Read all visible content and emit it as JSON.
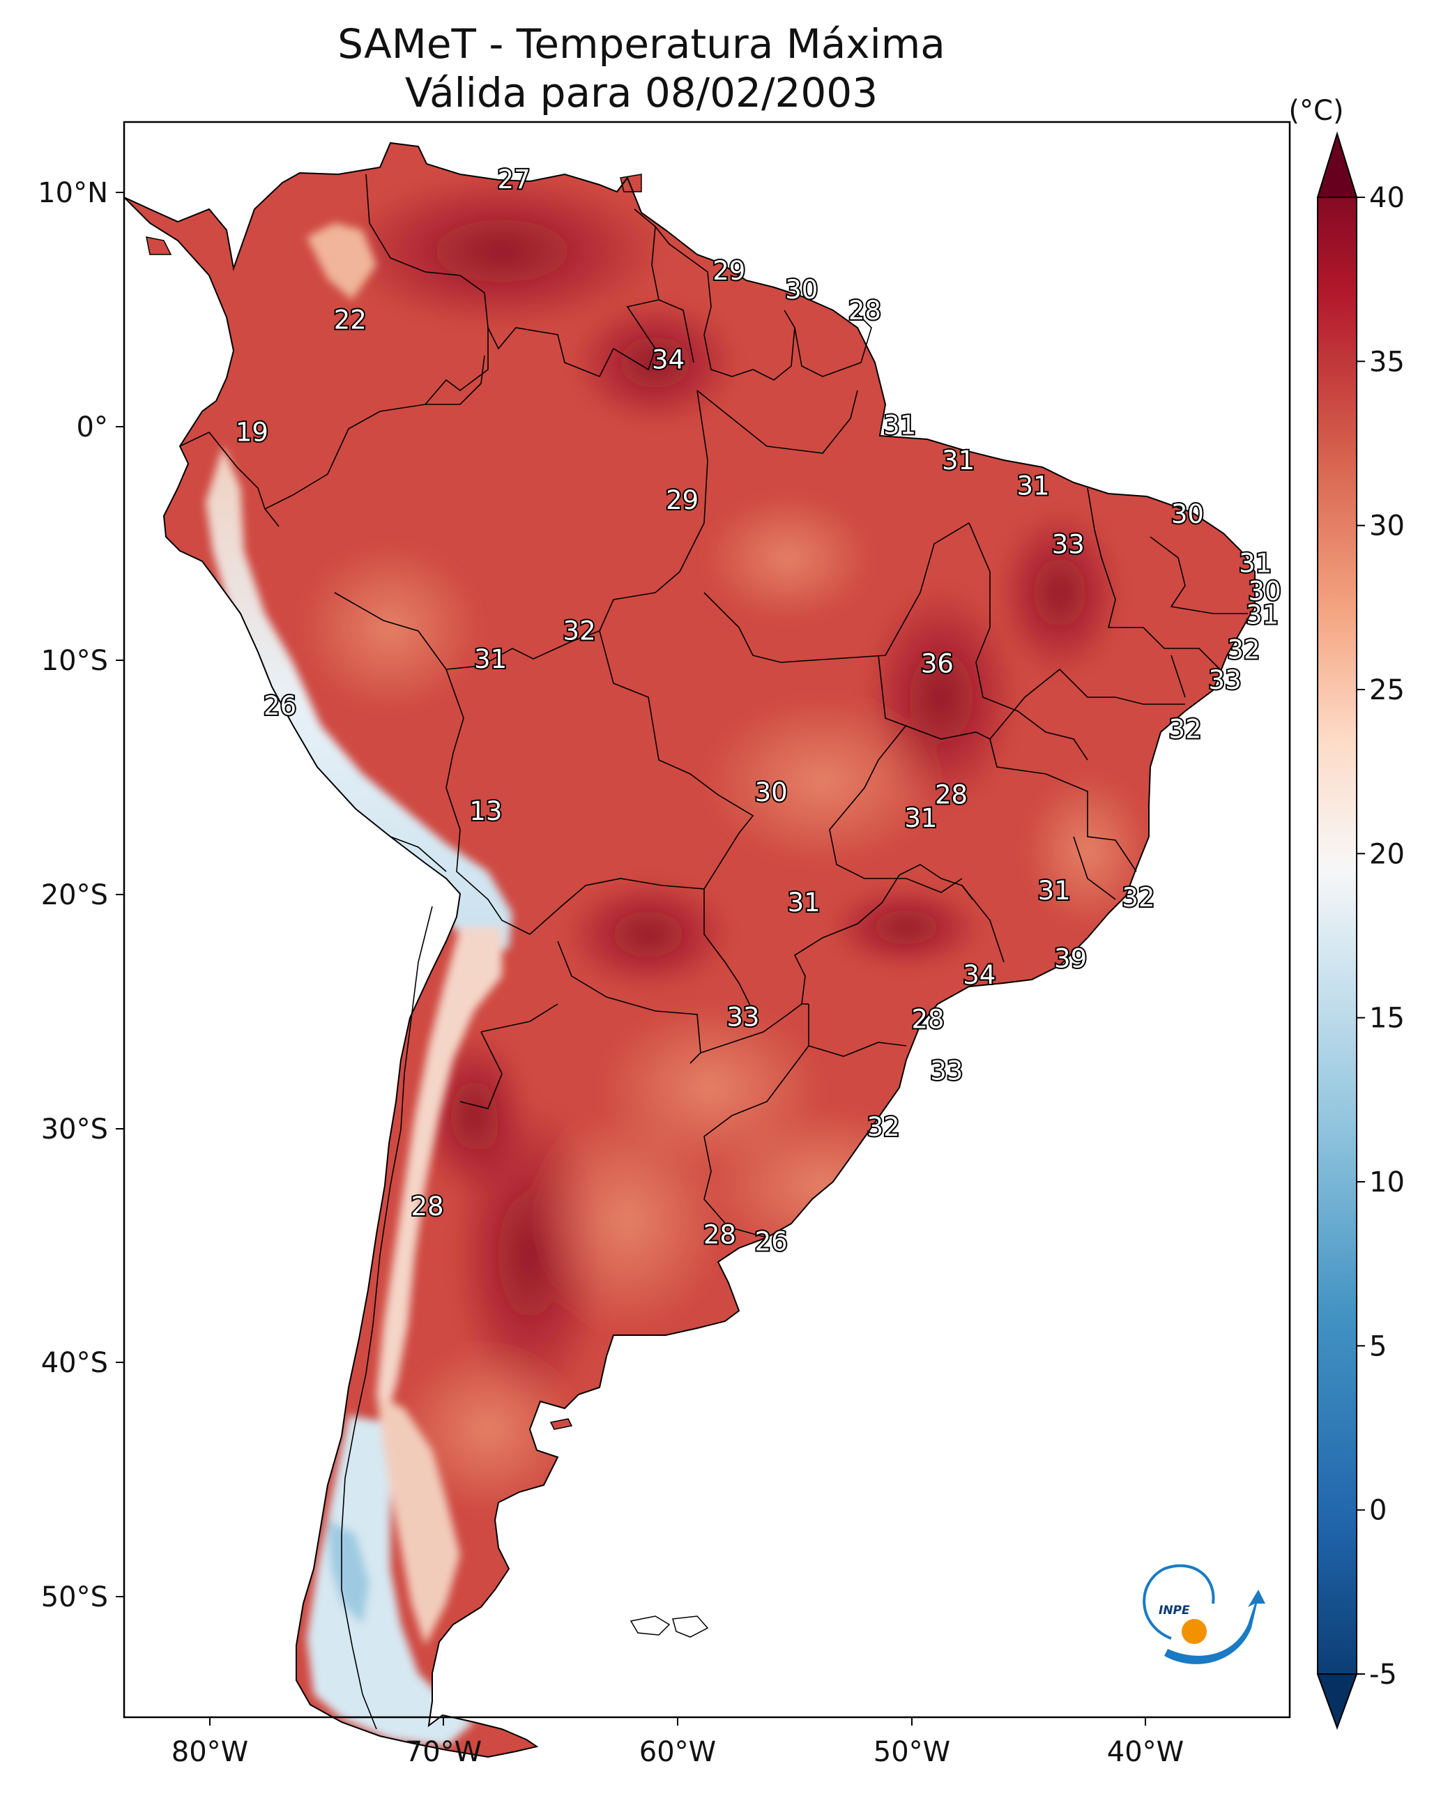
{
  "title_line1": "SAMeT - Temperatura Máxima",
  "title_line2": "Válida para 08/02/2003",
  "colorbar": {
    "unit": "(°C)",
    "ticks": [
      "40",
      "35",
      "30",
      "25",
      "20",
      "15",
      "10",
      "5",
      "0",
      "-5"
    ]
  },
  "axes": {
    "lon_ticks": [
      "80°W",
      "70°W",
      "60°W",
      "50°W",
      "40°W"
    ],
    "lat_ticks": [
      "10°N",
      "0°",
      "10°S",
      "20°S",
      "30°S",
      "40°S",
      "50°S"
    ]
  },
  "logo_text": "INPE",
  "colors": {
    "hot": "#67001f",
    "warm": "#c43b3b",
    "mild": "#ef8a62",
    "neutral": "#f7f7f7",
    "cool": "#92c5de",
    "cold": "#053061"
  },
  "station_values": [
    {
      "label": "27",
      "lon": -67.0,
      "lat": 10.5
    },
    {
      "label": "22",
      "lon": -74.0,
      "lat": 4.5
    },
    {
      "label": "29",
      "lon": -57.8,
      "lat": 6.6
    },
    {
      "label": "30",
      "lon": -54.7,
      "lat": 5.8
    },
    {
      "label": "28",
      "lon": -52.0,
      "lat": 4.9
    },
    {
      "label": "34",
      "lon": -60.4,
      "lat": 2.8
    },
    {
      "label": "19",
      "lon": -78.2,
      "lat": -0.3
    },
    {
      "label": "31",
      "lon": -50.5,
      "lat": 0.0
    },
    {
      "label": "31",
      "lon": -48.0,
      "lat": -1.5
    },
    {
      "label": "31",
      "lon": -44.8,
      "lat": -2.6
    },
    {
      "label": "29",
      "lon": -59.8,
      "lat": -3.2
    },
    {
      "label": "30",
      "lon": -38.2,
      "lat": -3.8
    },
    {
      "label": "33",
      "lon": -43.3,
      "lat": -5.1
    },
    {
      "label": "31",
      "lon": -35.3,
      "lat": -5.9
    },
    {
      "label": "30",
      "lon": -34.9,
      "lat": -7.1
    },
    {
      "label": "31",
      "lon": -35.0,
      "lat": -8.1
    },
    {
      "label": "32",
      "lon": -64.2,
      "lat": -8.8
    },
    {
      "label": "31",
      "lon": -68.0,
      "lat": -10.0
    },
    {
      "label": "36",
      "lon": -48.9,
      "lat": -10.2
    },
    {
      "label": "32",
      "lon": -35.8,
      "lat": -9.6
    },
    {
      "label": "33",
      "lon": -36.6,
      "lat": -10.9
    },
    {
      "label": "26",
      "lon": -77.0,
      "lat": -12.0
    },
    {
      "label": "32",
      "lon": -38.3,
      "lat": -13.0
    },
    {
      "label": "28",
      "lon": -48.3,
      "lat": -15.8
    },
    {
      "label": "30",
      "lon": -56.0,
      "lat": -15.7
    },
    {
      "label": "31",
      "lon": -49.6,
      "lat": -16.8
    },
    {
      "label": "13",
      "lon": -68.2,
      "lat": -16.5
    },
    {
      "label": "31",
      "lon": -43.9,
      "lat": -19.9
    },
    {
      "label": "32",
      "lon": -40.3,
      "lat": -20.2
    },
    {
      "label": "31",
      "lon": -54.6,
      "lat": -20.4
    },
    {
      "label": "39",
      "lon": -43.2,
      "lat": -22.8
    },
    {
      "label": "34",
      "lon": -47.1,
      "lat": -23.5
    },
    {
      "label": "33",
      "lon": -57.2,
      "lat": -25.3
    },
    {
      "label": "28",
      "lon": -49.3,
      "lat": -25.4
    },
    {
      "label": "33",
      "lon": -48.5,
      "lat": -27.6
    },
    {
      "label": "32",
      "lon": -51.2,
      "lat": -30.0
    },
    {
      "label": "28",
      "lon": -70.7,
      "lat": -33.4
    },
    {
      "label": "28",
      "lon": -58.2,
      "lat": -34.6
    },
    {
      "label": "26",
      "lon": -56.0,
      "lat": -34.9
    }
  ]
}
